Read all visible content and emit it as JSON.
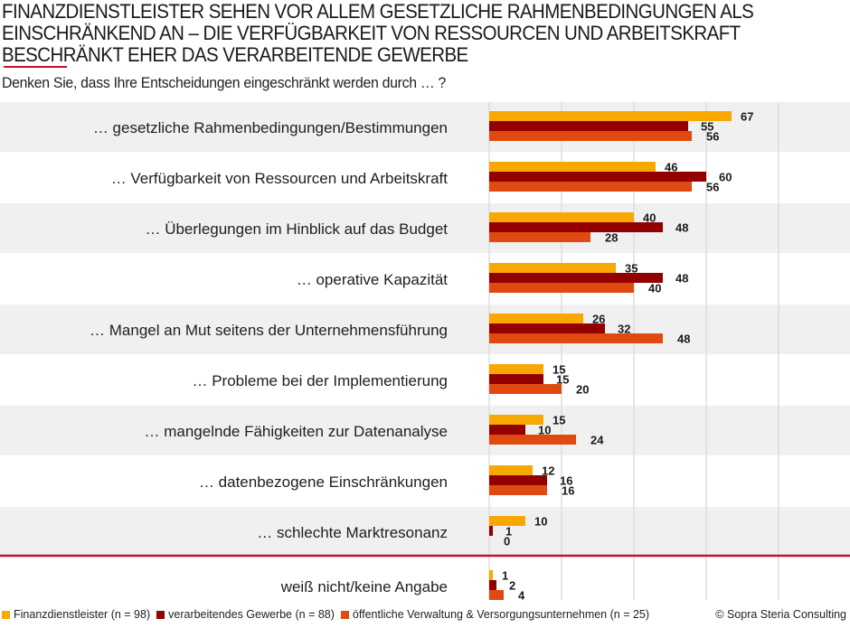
{
  "header": {
    "title_lines": [
      "FINANZDIENSTLEISTER SEHEN VOR ALLEM GESETZLICHE RAHMENBEDINGUNGEN ALS",
      "EINSCHRÄNKEND AN – DIE VERFÜGBARKEIT VON RESSOURCEN UND ARBEITSKRAFT",
      "BESCHRÄNKT EHER DAS VERARBEITENDE GEWERBE"
    ],
    "subtitle": "Denken Sie, dass Ihre Entscheidungen eingeschränkt werden durch … ?"
  },
  "colors": {
    "finanz": "#f8a800",
    "gewerbe": "#930000",
    "oeffentlich": "#e04a10",
    "band": "#f0f0f0",
    "grid": "#dedede",
    "separator": "#c8102e"
  },
  "chart_data": {
    "type": "bar",
    "orientation": "horizontal",
    "title": "FINANZDIENSTLEISTER SEHEN VOR ALLEM GESETZLICHE RAHMENBEDINGUNGEN ALS EINSCHRÄNKEND AN – DIE VERFÜGBARKEIT VON RESSOURCEN UND ARBEITSKRAFT BESCHRÄNKT EHER DAS VERARBEITENDE GEWERBE",
    "subtitle": "Denken Sie, dass Ihre Entscheidungen eingeschränkt werden durch … ?",
    "xlabel": "",
    "ylabel": "",
    "xlim": [
      0,
      100
    ],
    "grid": true,
    "grid_step": 20,
    "legend_position": "bottom",
    "categories": [
      "… gesetzliche Rahmenbedingungen/Bestimmungen",
      "… Verfügbarkeit von Ressourcen und Arbeitskraft",
      "… Überlegungen im Hinblick auf das Budget",
      "… operative Kapazität",
      "… Mangel an Mut seitens der Unternehmensführung",
      "… Probleme bei der Implementierung",
      "… mangelnde Fähigkeiten zur Datenanalyse",
      "… datenbezogene Einschränkungen",
      "… schlechte Marktresonanz",
      "weiß nicht/keine Angabe"
    ],
    "separator_before_index": 9,
    "series": [
      {
        "key": "finanz",
        "name": "Finanzdienstleister (n = 98)",
        "values": [
          67,
          46,
          40,
          35,
          26,
          15,
          15,
          12,
          10,
          1
        ]
      },
      {
        "key": "gewerbe",
        "name": "verarbeitendes Gewerbe (n = 88)",
        "values": [
          55,
          60,
          48,
          48,
          32,
          15,
          10,
          16,
          1,
          2
        ]
      },
      {
        "key": "oeffentlich",
        "name": "öffentliche Verwaltung & Versorgungsunternehmen (n = 25)",
        "values": [
          56,
          56,
          28,
          40,
          48,
          20,
          24,
          16,
          0,
          4
        ]
      }
    ]
  },
  "footer": {
    "copyright": "© Sopra Steria Consulting"
  }
}
